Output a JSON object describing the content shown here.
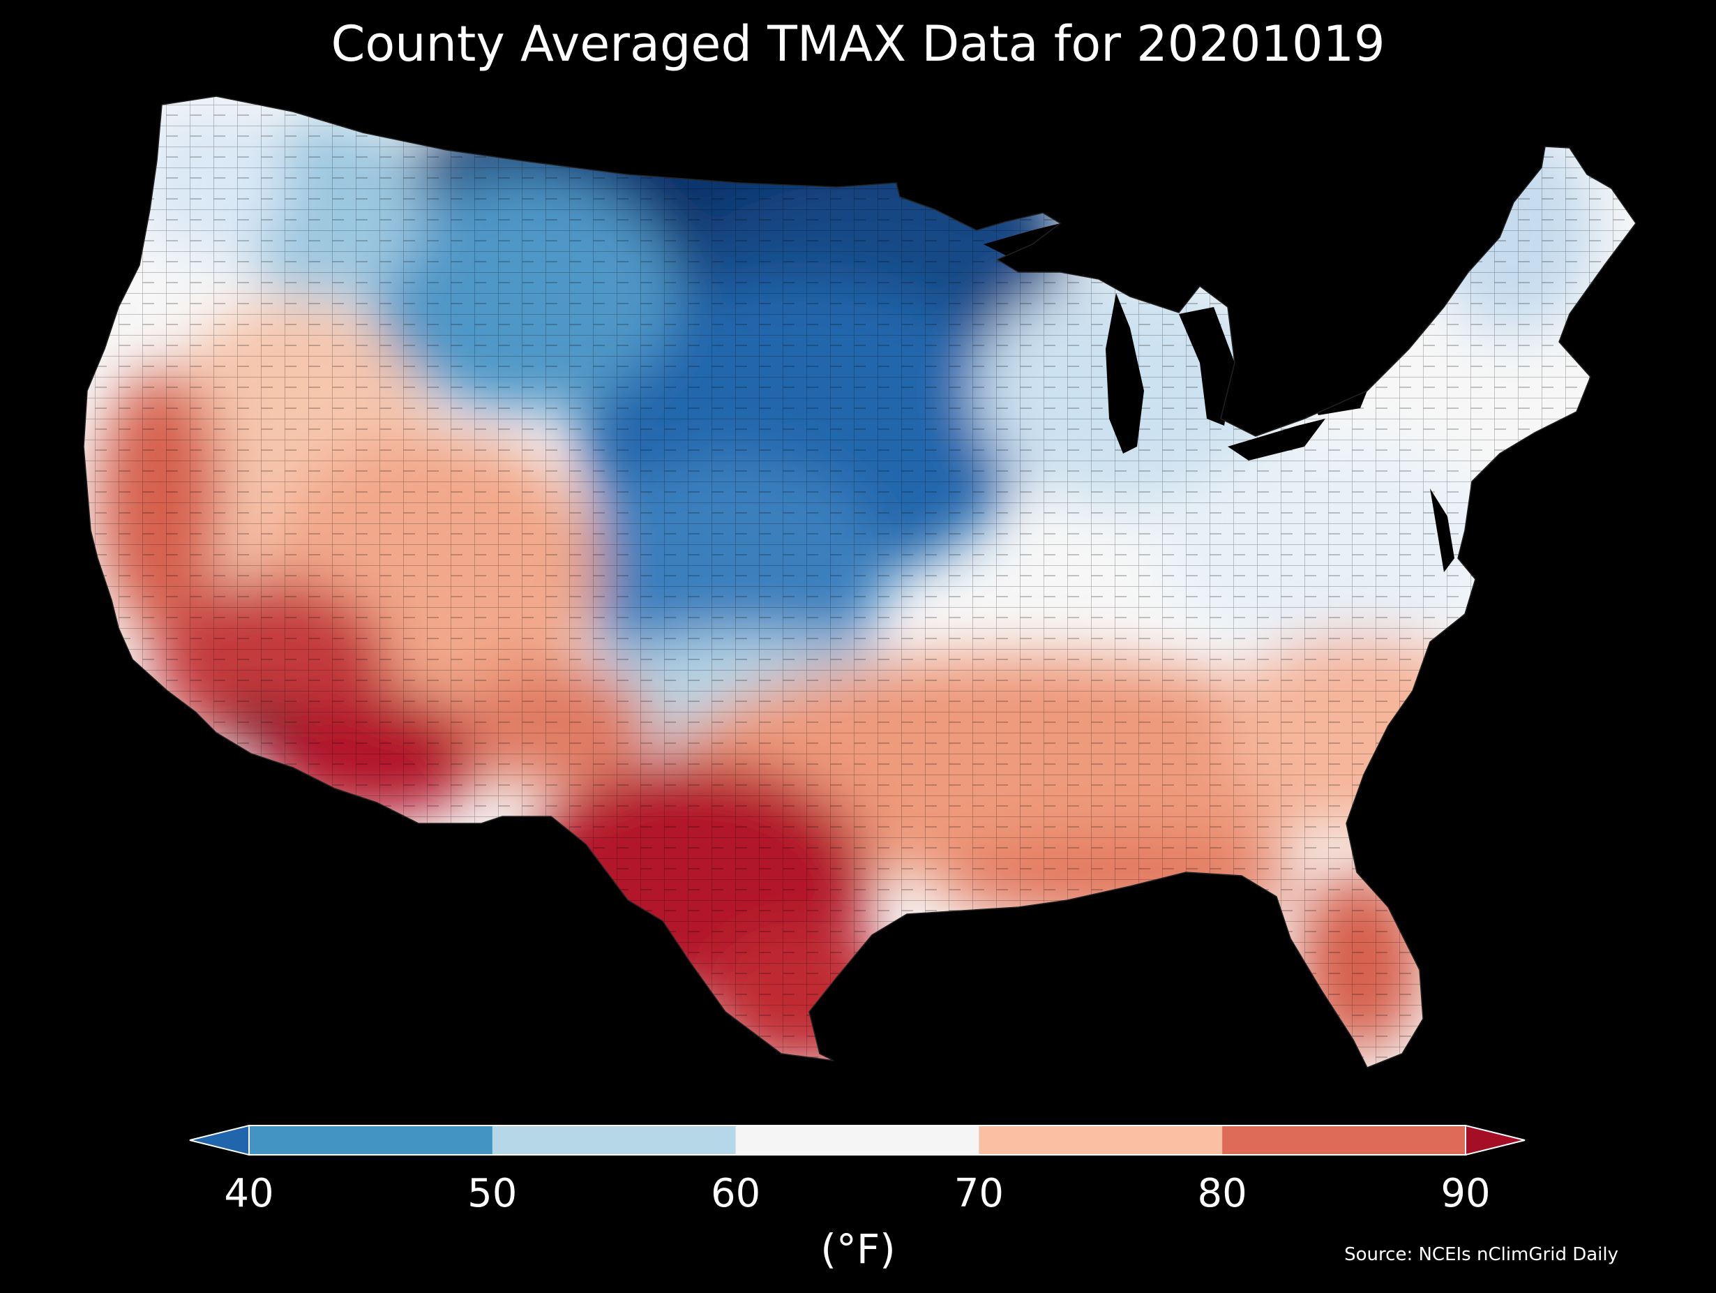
{
  "title": "County Averaged TMAX Data for 20201019",
  "legend": {
    "unit": "(°F)",
    "ticks": [
      "40",
      "50",
      "60",
      "70",
      "80",
      "90"
    ],
    "bins": [
      {
        "range": "<40",
        "color": "#2166ac"
      },
      {
        "range": "40-50",
        "color": "#4393c3"
      },
      {
        "range": "50-60",
        "color": "#b6d7e8"
      },
      {
        "range": "60-70",
        "color": "#f5f5f5"
      },
      {
        "range": "70-80",
        "color": "#f9c0a3"
      },
      {
        "range": "80-90",
        "color": "#dd6b58"
      },
      {
        "range": ">90",
        "color": "#a50f26"
      }
    ]
  },
  "source": "Source: NCEIs nClimGrid Daily",
  "colors": {
    "background": "#000000",
    "cold_extreme": "#08306b",
    "cold": "#2166ac",
    "cool": "#6aaed6",
    "mild": "#dbe9f6",
    "neutral": "#f7f7f7",
    "warm": "#f6b89a",
    "hot": "#d6604d",
    "hot_extreme": "#b2182b",
    "hottest": "#67001f"
  }
}
